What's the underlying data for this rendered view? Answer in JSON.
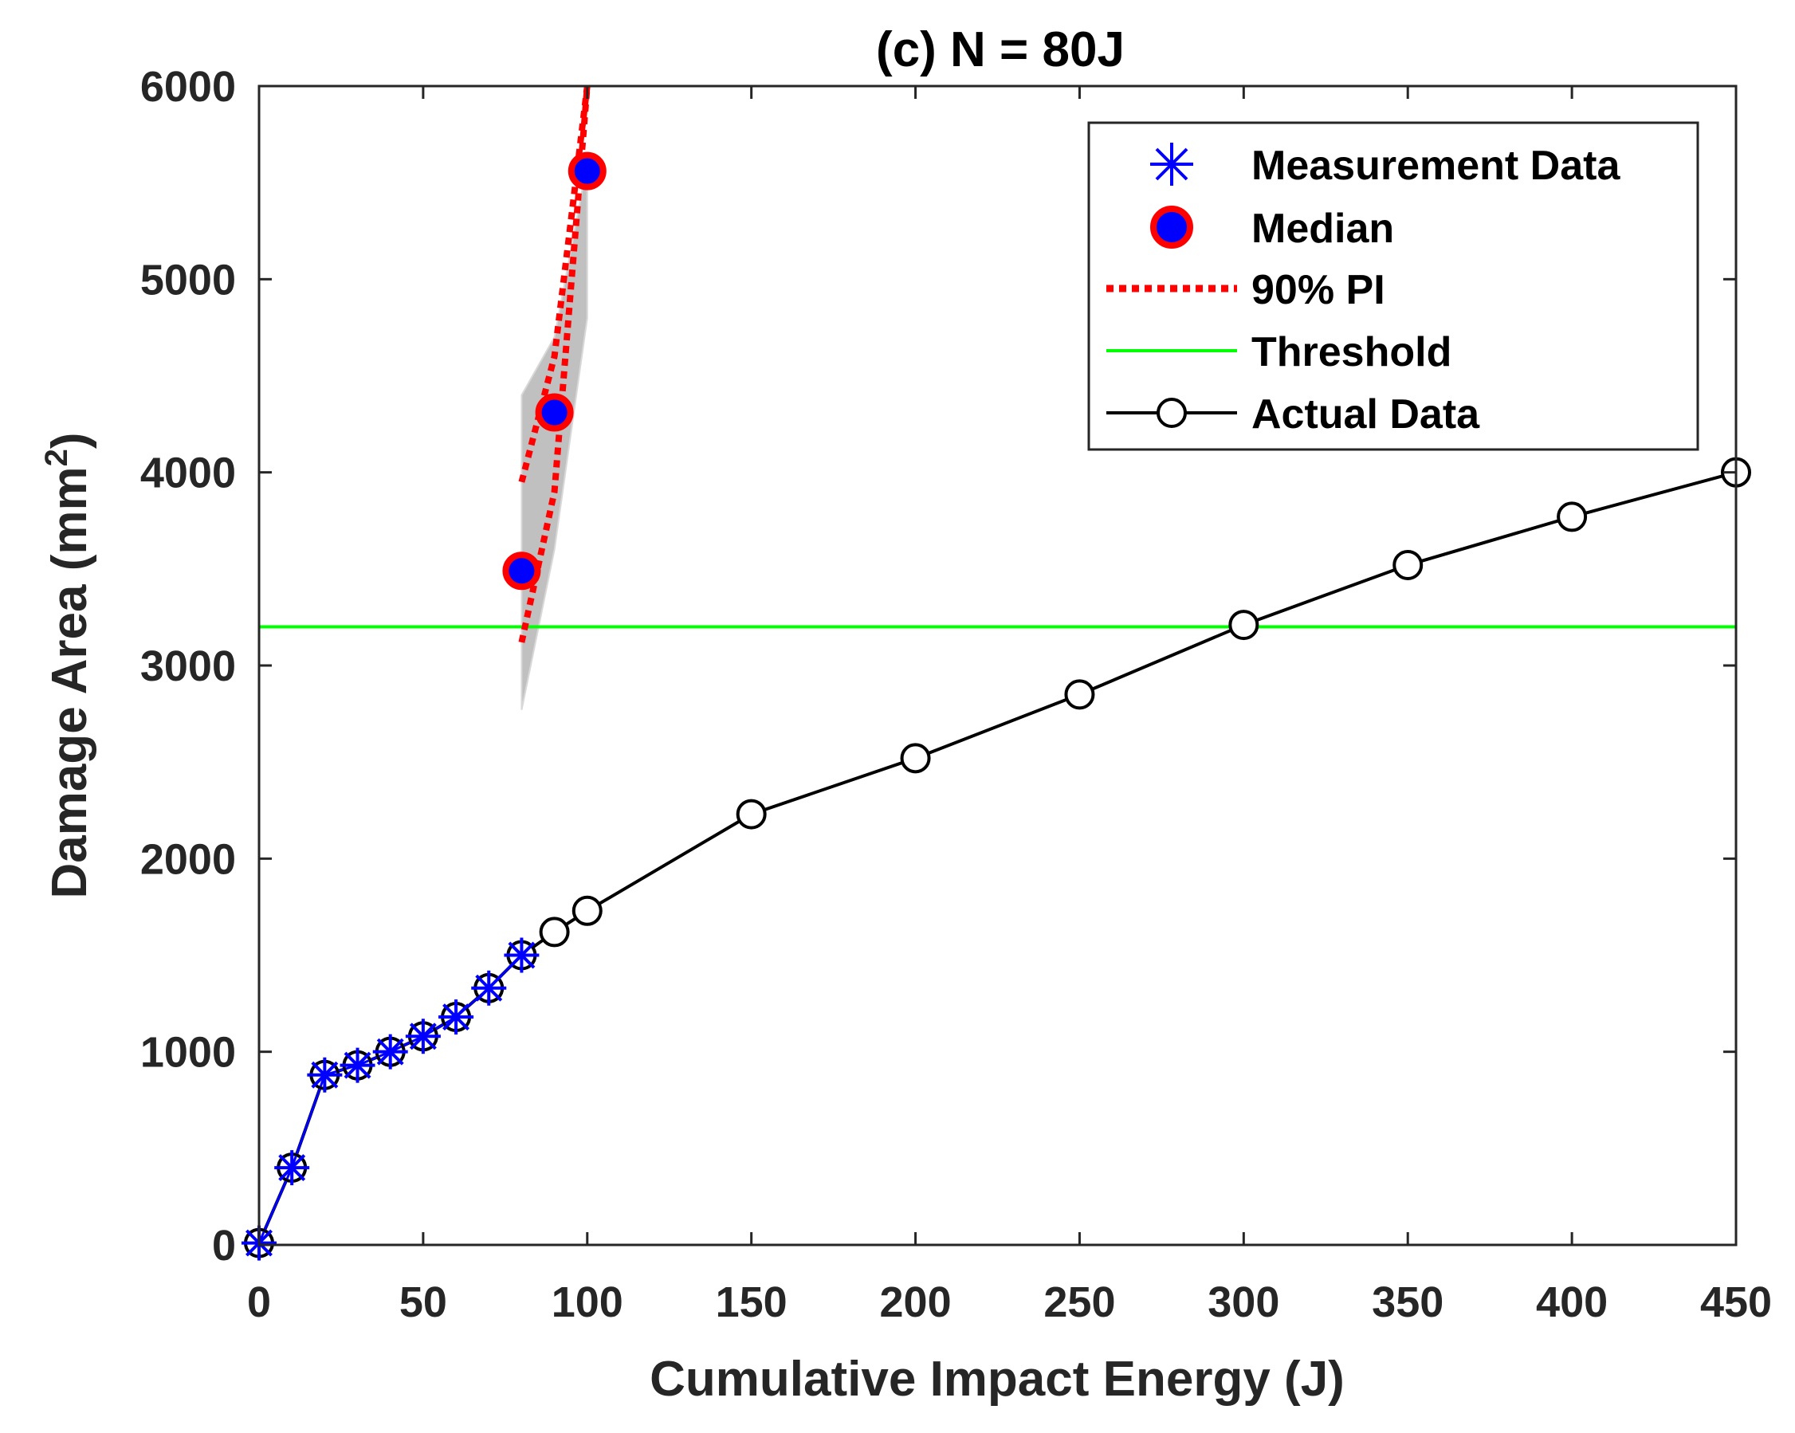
{
  "chart_data": {
    "type": "line",
    "title": "(c) N = 80J",
    "xlabel": "Cumulative Impact Energy (J)",
    "ylabel": "Damage Area (mm",
    "ylabel_sup": "2",
    "ylabel_end": ")",
    "xlim": [
      0,
      450
    ],
    "ylim": [
      0,
      6000
    ],
    "xticks": [
      0,
      50,
      100,
      150,
      200,
      250,
      300,
      350,
      400,
      450
    ],
    "yticks": [
      0,
      1000,
      2000,
      3000,
      4000,
      5000,
      6000
    ],
    "grid": false,
    "legend_position": "top-right",
    "legend": [
      {
        "label": "Measurement Data",
        "style": "blue-asterisk"
      },
      {
        "label": "Median",
        "style": "blue-dot-red-edge"
      },
      {
        "label": "90% PI",
        "style": "red-dotted"
      },
      {
        "label": "Threshold",
        "style": "green-line"
      },
      {
        "label": "Actual Data",
        "style": "black-line-circle"
      }
    ],
    "series": [
      {
        "name": "Actual Data",
        "color": "#000000",
        "x": [
          0,
          10,
          20,
          30,
          40,
          50,
          60,
          70,
          80,
          90,
          100,
          150,
          200,
          250,
          300,
          350,
          400,
          450
        ],
        "y": [
          10,
          400,
          880,
          930,
          1000,
          1080,
          1180,
          1330,
          1500,
          1620,
          1730,
          2230,
          2520,
          2850,
          3210,
          3520,
          3770,
          4000
        ]
      },
      {
        "name": "Measurement Data",
        "color": "#0000ff",
        "x": [
          0,
          10,
          20,
          30,
          40,
          50,
          60,
          70,
          80
        ],
        "y": [
          10,
          400,
          880,
          930,
          1000,
          1080,
          1180,
          1330,
          1500
        ]
      },
      {
        "name": "Median",
        "color": "#0000ff",
        "edge_color": "#ff0000",
        "x": [
          80,
          90,
          100
        ],
        "y": [
          3490,
          4310,
          5560
        ]
      },
      {
        "name": "90% PI",
        "color": "#ff0000",
        "lower": {
          "x": [
            80,
            90,
            100
          ],
          "y": [
            3120,
            3900,
            6000
          ]
        },
        "upper": {
          "x": [
            80,
            90,
            100
          ],
          "y": [
            3950,
            4600,
            6000
          ]
        }
      },
      {
        "name": "Threshold",
        "color": "#00ff00",
        "y": 3200
      }
    ],
    "band": {
      "color": "#c0c0c0",
      "x": [
        80,
        90,
        100
      ],
      "lower": [
        2770,
        3600,
        4800
      ],
      "upper": [
        4400,
        4700,
        5600
      ]
    }
  }
}
